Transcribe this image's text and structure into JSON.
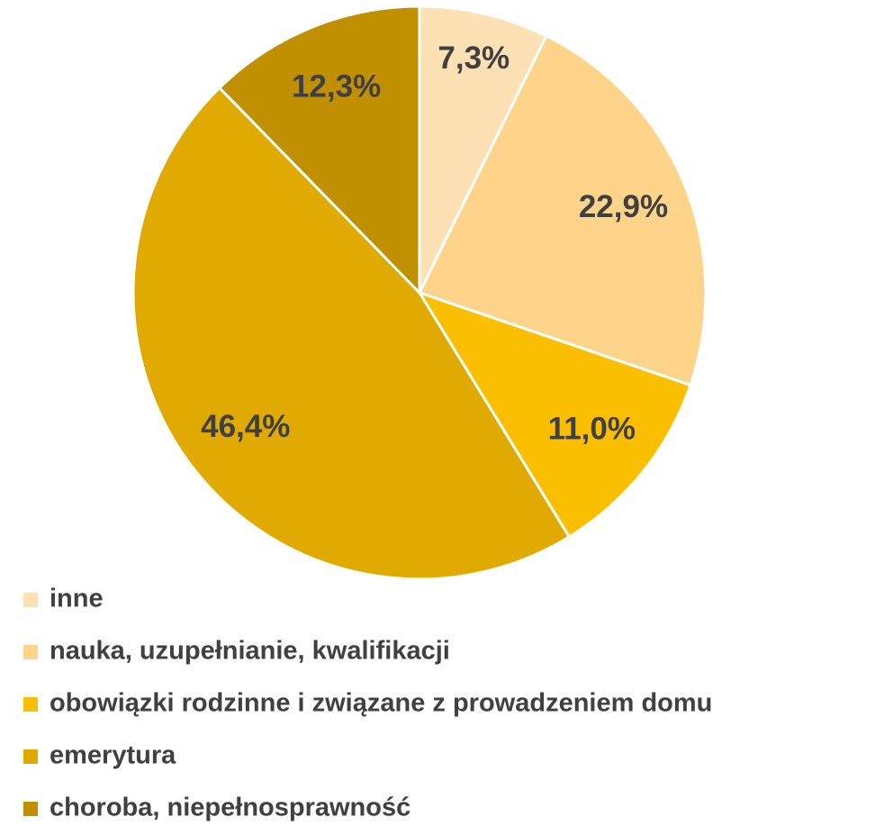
{
  "chart_data": {
    "type": "pie",
    "categories": [
      "inne",
      "nauka, uzupełnianie, kwalifikacji",
      "obowiązki rodzinne i związane z prowadzeniem domu",
      "emerytura",
      "choroba, niepełnosprawność"
    ],
    "values": [
      7.3,
      22.9,
      11.0,
      46.4,
      12.3
    ],
    "value_labels": [
      "7,3%",
      "22,9%",
      "11,0%",
      "46,4%",
      "12,3%"
    ],
    "colors": [
      "#fde0b4",
      "#fdd48a",
      "#fcbf00",
      "#e0aa00",
      "#c09000"
    ],
    "legend": "bottom-left"
  }
}
